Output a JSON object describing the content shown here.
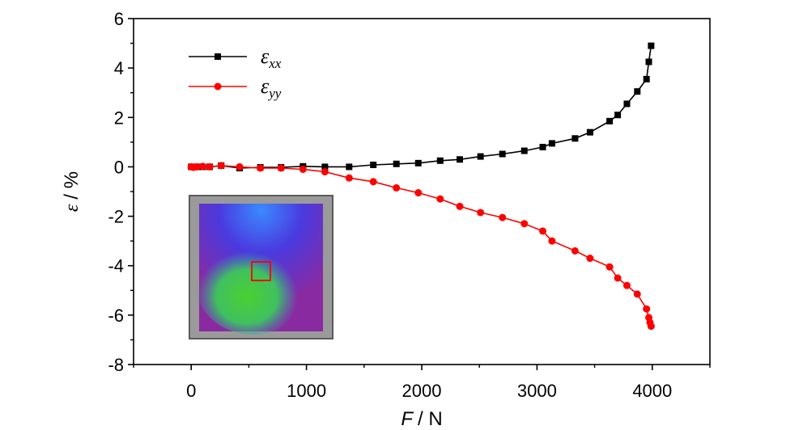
{
  "chart_data": {
    "type": "line",
    "xlabel_var": "F",
    "xlabel_unit": "/ N",
    "ylabel_var": "ε",
    "ylabel_unit": "/ %",
    "xlim": [
      -500,
      4500
    ],
    "ylim": [
      -8,
      6
    ],
    "xticks": [
      "0",
      "1000",
      "2000",
      "3000",
      "4000"
    ],
    "yticks": [
      "6",
      "4",
      "2",
      "0",
      "-2",
      "-4",
      "-6",
      "-8"
    ],
    "legend_position": "top-left",
    "series": [
      {
        "name_main": "ε",
        "name_sub": "xx",
        "color": "#000000",
        "marker": "square",
        "x": [
          0,
          20,
          50,
          100,
          160,
          260,
          420,
          600,
          780,
          970,
          1160,
          1370,
          1580,
          1780,
          1970,
          2160,
          2330,
          2510,
          2700,
          2890,
          3050,
          3130,
          3330,
          3460,
          3630,
          3700,
          3780,
          3870,
          3950,
          3970,
          3990
        ],
        "y": [
          0.0,
          0.0,
          0.0,
          0.0,
          0.0,
          0.05,
          -0.05,
          -0.02,
          -0.02,
          0.02,
          0.0,
          0.0,
          0.08,
          0.12,
          0.15,
          0.25,
          0.3,
          0.42,
          0.52,
          0.65,
          0.8,
          0.95,
          1.15,
          1.4,
          1.85,
          2.1,
          2.55,
          3.05,
          3.55,
          4.25,
          4.9
        ]
      },
      {
        "name_main": "ε",
        "name_sub": "yy",
        "color": "#ff0000",
        "marker": "circle",
        "x": [
          0,
          20,
          50,
          100,
          160,
          260,
          420,
          600,
          780,
          970,
          1160,
          1370,
          1580,
          1780,
          1970,
          2160,
          2330,
          2510,
          2700,
          2890,
          3050,
          3130,
          3330,
          3460,
          3630,
          3700,
          3780,
          3870,
          3950,
          3970,
          3980,
          3990
        ],
        "y": [
          0.0,
          -0.02,
          0.0,
          0.02,
          0.0,
          0.05,
          0.0,
          -0.05,
          -0.05,
          -0.1,
          -0.2,
          -0.45,
          -0.6,
          -0.85,
          -1.05,
          -1.3,
          -1.6,
          -1.85,
          -2.05,
          -2.3,
          -2.6,
          -3.0,
          -3.4,
          -3.7,
          -4.05,
          -4.5,
          -4.8,
          -5.15,
          -5.75,
          -6.1,
          -6.3,
          -6.45
        ]
      }
    ],
    "inset": {
      "type": "image",
      "description_icon": "strain-field-map",
      "colors": [
        "#3a3aff",
        "#20c0a0",
        "#44cc22",
        "#ff4040"
      ],
      "marker_color": "#ff0000"
    }
  }
}
